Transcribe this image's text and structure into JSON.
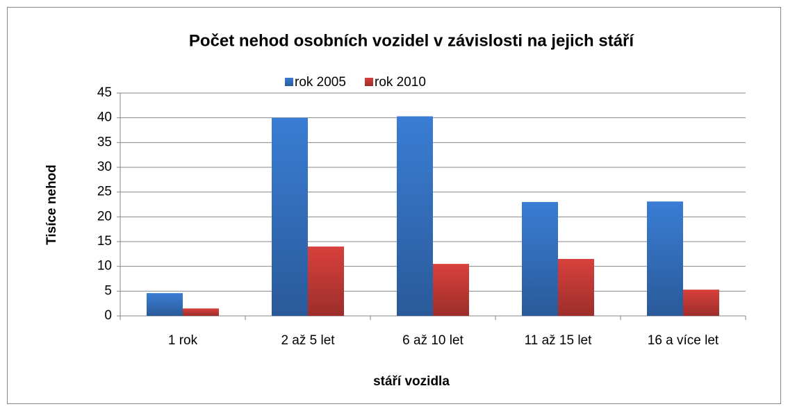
{
  "chart_data": {
    "type": "bar",
    "title": "Počet nehod osobních vozidel v závislosti na jejich stáří",
    "xlabel": "stáří vozidla",
    "ylabel": "Tisíce nehod",
    "categories": [
      "1 rok",
      "2 až 5 let",
      "6 až 10 let",
      "11 až 15 let",
      "16 a více let"
    ],
    "series": [
      {
        "name": "rok 2005",
        "color": "#3a7dd4",
        "values": [
          4.6,
          40,
          40.3,
          23,
          23.1
        ]
      },
      {
        "name": "rok 2010",
        "color": "#d9403c",
        "values": [
          1.5,
          14,
          10.5,
          11.5,
          5.3
        ]
      }
    ],
    "ylim": [
      0,
      45
    ],
    "yticks": [
      0,
      5,
      10,
      15,
      20,
      25,
      30,
      35,
      40,
      45
    ],
    "grid": true,
    "legend": "top"
  }
}
